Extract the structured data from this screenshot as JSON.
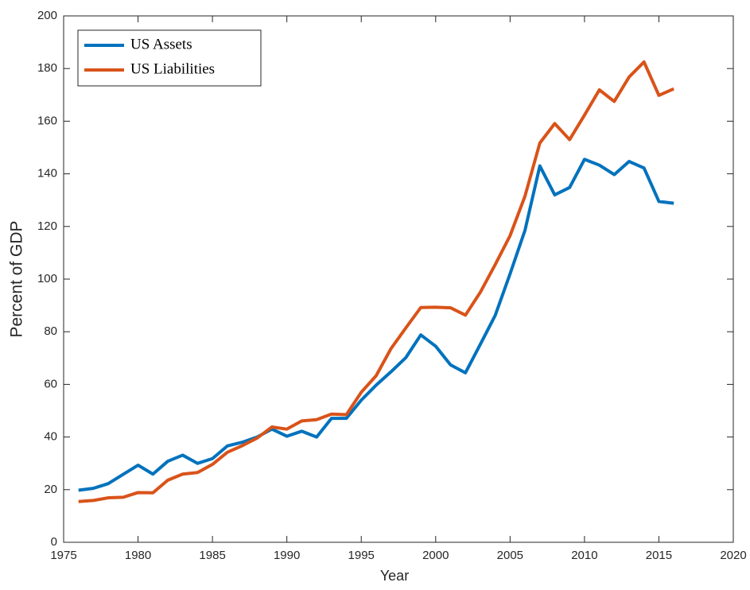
{
  "chart_data": {
    "type": "line",
    "xlabel": "Year",
    "ylabel": "Percent of GDP",
    "x": [
      1976,
      1977,
      1978,
      1979,
      1980,
      1981,
      1982,
      1983,
      1984,
      1985,
      1986,
      1987,
      1988,
      1989,
      1990,
      1991,
      1992,
      1993,
      1994,
      1995,
      1996,
      1997,
      1998,
      1999,
      2000,
      2001,
      2002,
      2003,
      2004,
      2005,
      2006,
      2007,
      2008,
      2009,
      2010,
      2011,
      2012,
      2013,
      2014,
      2015,
      2016
    ],
    "series": [
      {
        "name": "US Assets",
        "color": "#0072bd",
        "values": [
          19.8,
          20.5,
          22.3,
          25.8,
          29.3,
          25.9,
          30.8,
          33.1,
          30.0,
          31.8,
          36.6,
          38.0,
          40.0,
          43.0,
          40.3,
          42.2,
          40.0,
          47.1,
          47.1,
          54.0,
          59.7,
          64.8,
          70.2,
          78.8,
          74.5,
          67.4,
          64.4,
          75.2,
          86.2,
          102.0,
          118.5,
          143.0,
          132.0,
          134.8,
          145.5,
          143.3,
          139.7,
          144.7,
          142.2,
          129.5,
          128.8
        ]
      },
      {
        "name": "US Liabilities",
        "color": "#d95319",
        "values": [
          15.5,
          15.9,
          16.9,
          17.1,
          18.9,
          18.8,
          23.6,
          25.9,
          26.5,
          29.6,
          34.2,
          36.7,
          39.6,
          43.8,
          43.0,
          46.1,
          46.6,
          48.7,
          48.5,
          57.0,
          63.3,
          73.6,
          81.5,
          89.2,
          89.3,
          89.1,
          86.3,
          95.0,
          105.5,
          116.5,
          131.5,
          151.7,
          159.1,
          153.0,
          162.3,
          171.9,
          167.5,
          176.8,
          182.5,
          169.8,
          172.3
        ]
      }
    ],
    "xlim": [
      1975,
      2020
    ],
    "xticks": [
      1975,
      1980,
      1985,
      1990,
      1995,
      2000,
      2005,
      2010,
      2015,
      2020
    ],
    "ylim": [
      0,
      200
    ],
    "yticks": [
      0,
      20,
      40,
      60,
      80,
      100,
      120,
      140,
      160,
      180,
      200
    ],
    "legend": "northwest"
  }
}
